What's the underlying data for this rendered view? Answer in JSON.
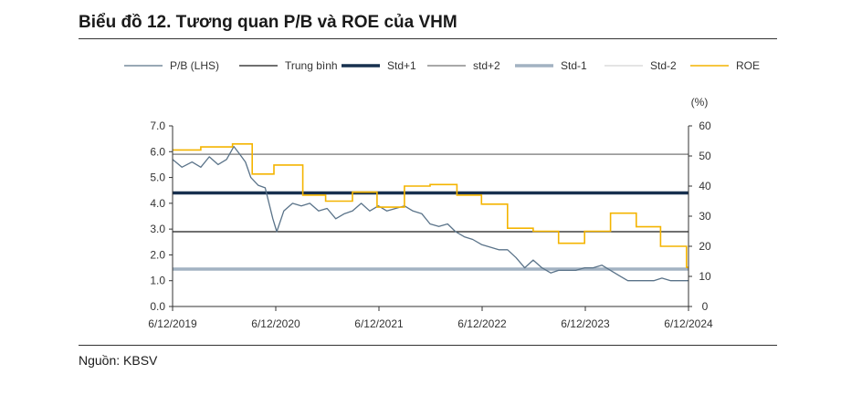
{
  "figure": {
    "title": "Biểu đồ 12. Tương quan P/B và ROE của VHM",
    "source": "Nguồn: KBSV"
  },
  "chart_data": {
    "type": "line",
    "right_axis_unit": "(%)",
    "x_ticks": [
      "6/12/2019",
      "6/12/2020",
      "6/12/2021",
      "6/12/2022",
      "6/12/2023",
      "6/12/2024"
    ],
    "xlim": [
      "2019-06-12",
      "2024-06-12"
    ],
    "ylim_left": [
      0,
      7
    ],
    "y_ticks_left": [
      "0.0",
      "1.0",
      "2.0",
      "3.0",
      "4.0",
      "5.0",
      "6.0",
      "7.0"
    ],
    "ylim_right": [
      0,
      60
    ],
    "y_ticks_right": [
      "0",
      "10",
      "20",
      "30",
      "40",
      "50",
      "60"
    ],
    "legend_position": "top",
    "legend": [
      {
        "name": "P/B (LHS)",
        "color": "#5a7389",
        "width": 1.3
      },
      {
        "name": "Trung bình",
        "color": "#1a1a1a",
        "width": 1.3
      },
      {
        "name": "Std+1",
        "color": "#17304f",
        "width": 3.5
      },
      {
        "name": "std+2",
        "color": "#8c8c8c",
        "width": 1.5
      },
      {
        "name": "Std-1",
        "color": "#a2b2c2",
        "width": 3.5
      },
      {
        "name": "Std-2",
        "color": "#d4d4d4",
        "width": 1.3
      },
      {
        "name": "ROE",
        "color": "#f4b400",
        "width": 1.6
      }
    ],
    "reference_lines": [
      {
        "name": "std+2",
        "value": 5.9,
        "color": "#8c8c8c",
        "width": 1.5
      },
      {
        "name": "Std+1",
        "value": 4.4,
        "color": "#17304f",
        "width": 3.5
      },
      {
        "name": "Trung bình",
        "value": 2.9,
        "color": "#1a1a1a",
        "width": 1.3
      },
      {
        "name": "Std-1",
        "value": 1.45,
        "color": "#a2b2c2",
        "width": 3.5
      }
    ],
    "series": [
      {
        "name": "P/B (LHS)",
        "axis": "left",
        "color": "#5a7389",
        "points": [
          [
            "2019-06-12",
            5.7
          ],
          [
            "2019-07-15",
            5.4
          ],
          [
            "2019-08-20",
            5.6
          ],
          [
            "2019-09-20",
            5.4
          ],
          [
            "2019-10-20",
            5.8
          ],
          [
            "2019-11-20",
            5.5
          ],
          [
            "2019-12-20",
            5.7
          ],
          [
            "2020-01-15",
            6.2
          ],
          [
            "2020-02-05",
            5.9
          ],
          [
            "2020-02-25",
            5.6
          ],
          [
            "2020-03-15",
            5.0
          ],
          [
            "2020-04-10",
            4.7
          ],
          [
            "2020-05-05",
            4.6
          ],
          [
            "2020-06-01",
            3.4
          ],
          [
            "2020-06-15",
            2.9
          ],
          [
            "2020-07-10",
            3.7
          ],
          [
            "2020-08-10",
            4.0
          ],
          [
            "2020-09-10",
            3.9
          ],
          [
            "2020-10-10",
            4.0
          ],
          [
            "2020-11-10",
            3.7
          ],
          [
            "2020-12-10",
            3.8
          ],
          [
            "2021-01-10",
            3.4
          ],
          [
            "2021-02-10",
            3.6
          ],
          [
            "2021-03-10",
            3.7
          ],
          [
            "2021-04-10",
            4.0
          ],
          [
            "2021-05-10",
            3.7
          ],
          [
            "2021-06-10",
            3.9
          ],
          [
            "2021-07-10",
            3.7
          ],
          [
            "2021-08-10",
            3.8
          ],
          [
            "2021-09-10",
            3.9
          ],
          [
            "2021-10-10",
            3.7
          ],
          [
            "2021-11-10",
            3.6
          ],
          [
            "2021-12-10",
            3.2
          ],
          [
            "2022-01-10",
            3.1
          ],
          [
            "2022-02-10",
            3.2
          ],
          [
            "2022-03-10",
            2.9
          ],
          [
            "2022-04-10",
            2.7
          ],
          [
            "2022-05-10",
            2.6
          ],
          [
            "2022-06-10",
            2.4
          ],
          [
            "2022-07-10",
            2.3
          ],
          [
            "2022-08-10",
            2.2
          ],
          [
            "2022-09-10",
            2.2
          ],
          [
            "2022-10-10",
            1.9
          ],
          [
            "2022-11-10",
            1.5
          ],
          [
            "2022-12-10",
            1.8
          ],
          [
            "2023-01-10",
            1.5
          ],
          [
            "2023-02-10",
            1.3
          ],
          [
            "2023-03-10",
            1.4
          ],
          [
            "2023-04-10",
            1.4
          ],
          [
            "2023-05-10",
            1.4
          ],
          [
            "2023-06-10",
            1.5
          ],
          [
            "2023-07-10",
            1.5
          ],
          [
            "2023-08-10",
            1.6
          ],
          [
            "2023-09-10",
            1.4
          ],
          [
            "2023-10-10",
            1.2
          ],
          [
            "2023-11-10",
            1.0
          ],
          [
            "2023-12-10",
            1.0
          ],
          [
            "2024-01-10",
            1.0
          ],
          [
            "2024-02-10",
            1.0
          ],
          [
            "2024-03-10",
            1.1
          ],
          [
            "2024-04-10",
            1.0
          ],
          [
            "2024-05-10",
            1.0
          ],
          [
            "2024-06-12",
            1.0
          ]
        ]
      },
      {
        "name": "ROE",
        "axis": "right",
        "color": "#f4b400",
        "step_points": [
          [
            "2019-06-12",
            52
          ],
          [
            "2019-09-20",
            53
          ],
          [
            "2020-01-10",
            54
          ],
          [
            "2020-03-20",
            44
          ],
          [
            "2020-06-05",
            47
          ],
          [
            "2020-09-15",
            37
          ],
          [
            "2020-12-05",
            35
          ],
          [
            "2021-03-10",
            38
          ],
          [
            "2021-06-05",
            33
          ],
          [
            "2021-09-10",
            40
          ],
          [
            "2021-12-10",
            40.5
          ],
          [
            "2022-03-15",
            37
          ],
          [
            "2022-06-10",
            34
          ],
          [
            "2022-09-10",
            26
          ],
          [
            "2022-12-10",
            25
          ],
          [
            "2023-03-10",
            21
          ],
          [
            "2023-06-10",
            25
          ],
          [
            "2023-09-10",
            31
          ],
          [
            "2023-12-10",
            26.5
          ],
          [
            "2024-03-05",
            20
          ],
          [
            "2024-06-05",
            13
          ]
        ]
      }
    ]
  }
}
